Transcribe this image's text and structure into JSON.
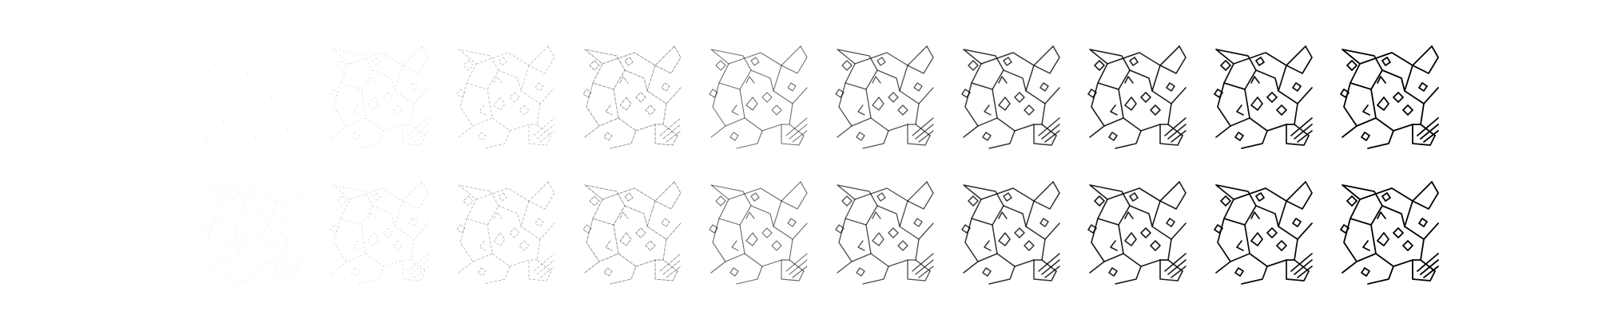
{
  "figure": {
    "description_free": true,
    "rows": 2,
    "columns": 10,
    "ink_color": "#000000",
    "background_color": "#ffffff",
    "row_levels": [
      [
        0.0,
        0.1,
        0.22,
        0.36,
        0.5,
        0.64,
        0.76,
        0.86,
        0.94,
        1.0
      ],
      [
        0.04,
        0.13,
        0.25,
        0.38,
        0.52,
        0.66,
        0.78,
        0.88,
        0.95,
        1.0
      ]
    ]
  }
}
